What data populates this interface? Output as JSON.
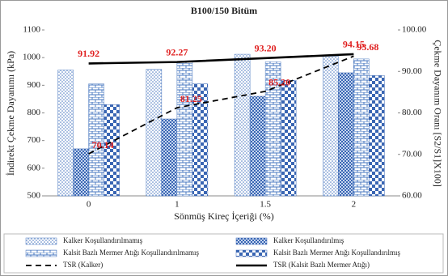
{
  "chart_data": {
    "type": "bar",
    "title": "B100/150 Bitüm",
    "x_label": "Sönmüş Kireç İçeriği (%)",
    "y_label": "İndirekt Çekme Dayanımı (kPa)",
    "y2_label": "Çekme Dayanım Oranı [S2/S1]X100]",
    "categories": [
      "0",
      "1",
      "1.5",
      "2"
    ],
    "ylim": [
      500,
      1100
    ],
    "yticks": [
      500,
      600,
      700,
      800,
      900,
      1000,
      1100
    ],
    "y2lim": [
      60,
      100
    ],
    "y2ticks": [
      {
        "value": 60,
        "label": "60.00"
      },
      {
        "value": 70,
        "label": "70.00"
      },
      {
        "value": 80,
        "label": "80.00"
      },
      {
        "value": 90,
        "label": "90.00"
      },
      {
        "value": 100,
        "label": "100.00"
      }
    ],
    "legend": "bottom",
    "series": [
      {
        "name": "Kalker Koşullandırılmamış",
        "type": "bar",
        "pattern": "dots",
        "color": "#4a78c0",
        "values": [
          955,
          958,
          1012,
          1005
        ]
      },
      {
        "name": "Kalker Koşullandırılmış",
        "type": "bar",
        "pattern": "checker",
        "color": "#3a66b3",
        "values": [
          670,
          778,
          860,
          945
        ]
      },
      {
        "name": "Kalsit Bazlı Mermer Atığı Koşullandırılmamış",
        "type": "bar",
        "pattern": "brick",
        "color": "#4a78c0",
        "values": [
          905,
          985,
          985,
          995
        ]
      },
      {
        "name": "Kalsit Bazlı Mermer Atığı Koşullandırılmış",
        "type": "bar",
        "pattern": "bigchecker",
        "color": "#3a66b3",
        "values": [
          830,
          905,
          918,
          935
        ]
      },
      {
        "name": "TSR (Kalker)",
        "type": "line",
        "axis": "y2",
        "dash": true,
        "color": "#000000",
        "values": [
          70.14,
          81.25,
          85.2,
          93.68
        ],
        "value_labels": [
          "70.14",
          "81.25",
          "85.20",
          "93.68"
        ]
      },
      {
        "name": "TSR (Kalsit Bazlı Mermer Atığı)",
        "type": "line",
        "axis": "y2",
        "dash": false,
        "color": "#000000",
        "values": [
          91.92,
          92.27,
          93.2,
          94.15
        ],
        "value_labels": [
          "91.92",
          "92.27",
          "93.20",
          "94.15"
        ]
      }
    ],
    "label_color": "#e02020"
  }
}
